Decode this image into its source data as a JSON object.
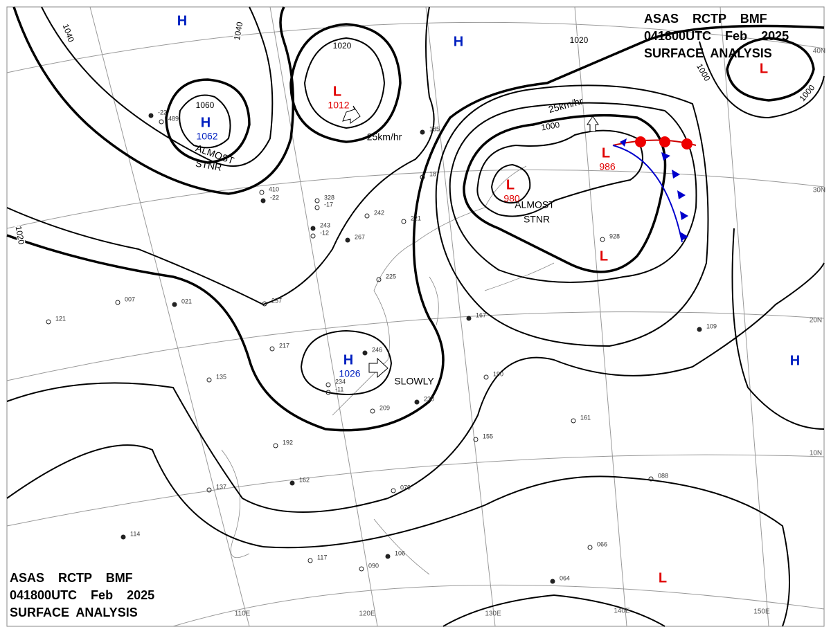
{
  "header": {
    "line1": "ASAS    RCTP    BMF",
    "line2": "041800UTC    Feb    2025",
    "line3": "SURFACE  ANALYSIS"
  },
  "pressure_centers": [
    {
      "symbol": "H"
    },
    {
      "symbol": "H",
      "value": "1062"
    },
    {
      "symbol": "L",
      "value": "1012"
    },
    {
      "symbol": "H"
    },
    {
      "symbol": "L"
    },
    {
      "symbol": "L",
      "value": "980"
    },
    {
      "symbol": "L",
      "value": "986"
    },
    {
      "symbol": "L"
    },
    {
      "symbol": "H",
      "value": "1026"
    },
    {
      "symbol": "H"
    },
    {
      "symbol": "L"
    }
  ],
  "isobar_labels": [
    "1040",
    "1040",
    "1060",
    "1020",
    "1020",
    "1000",
    "1000",
    "1020",
    "1000"
  ],
  "annotations": [
    "ALMOST",
    "STNR",
    "25km/hr",
    "25km/hr",
    "ALMOST",
    "STNR",
    "SLOWLY"
  ],
  "latitude_labels": [
    "40N",
    "30N",
    "20N",
    "10N"
  ],
  "longitude_labels": [
    "110E",
    "120E",
    "130E",
    "140E",
    "150E"
  ],
  "stations": [
    "-22",
    "489",
    "410",
    "-22",
    "328",
    "-17",
    "243",
    "-12",
    "257",
    "267",
    "221",
    "225",
    "185",
    "187",
    "242",
    "246",
    "234",
    "-11",
    "230",
    "209",
    "190",
    "167",
    "155",
    "161",
    "109",
    "088",
    "066",
    "064",
    "117",
    "090",
    "106",
    "079",
    "192",
    "162",
    "137",
    "135",
    "114",
    "121",
    "007",
    "021",
    "217",
    "928"
  ]
}
